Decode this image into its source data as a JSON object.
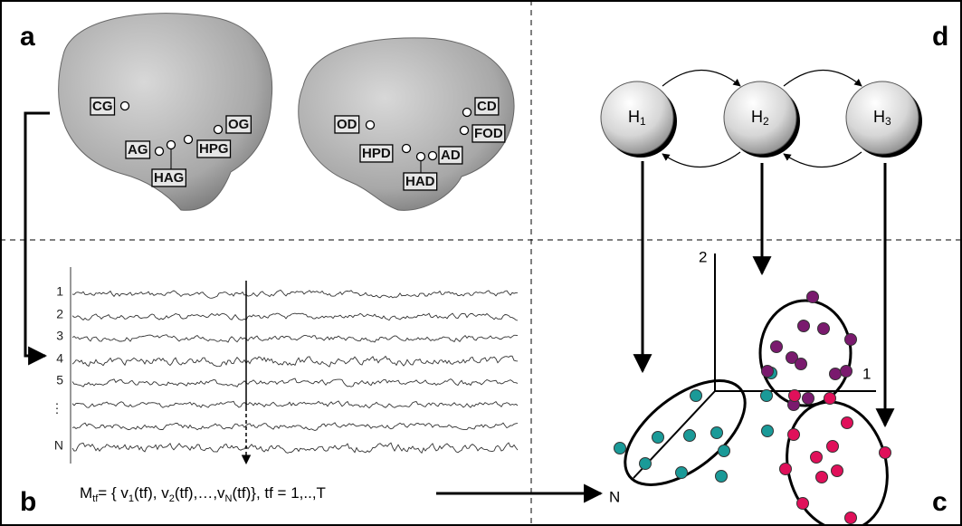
{
  "panel_labels": [
    "a",
    "b",
    "c",
    "d"
  ],
  "electrodes_left": [
    "CG",
    "OG",
    "HPG",
    "AG",
    "HAG"
  ],
  "electrodes_right": [
    "OD",
    "CD",
    "FOD",
    "HPD",
    "AD",
    "HAD"
  ],
  "channels": [
    "1",
    "2",
    "3",
    "4",
    "5",
    "⋮",
    "N"
  ],
  "formula": [
    "M",
    "tf",
    "= { v",
    "1",
    "(tf), v",
    "2",
    "(tf),…,v",
    "N",
    "(tf)},  tf = 1,..,T"
  ],
  "states": [
    {
      "letter": "H",
      "index": "1"
    },
    {
      "letter": "H",
      "index": "2"
    },
    {
      "letter": "H",
      "index": "3"
    }
  ],
  "axes": [
    "2",
    "1",
    "N"
  ]
}
